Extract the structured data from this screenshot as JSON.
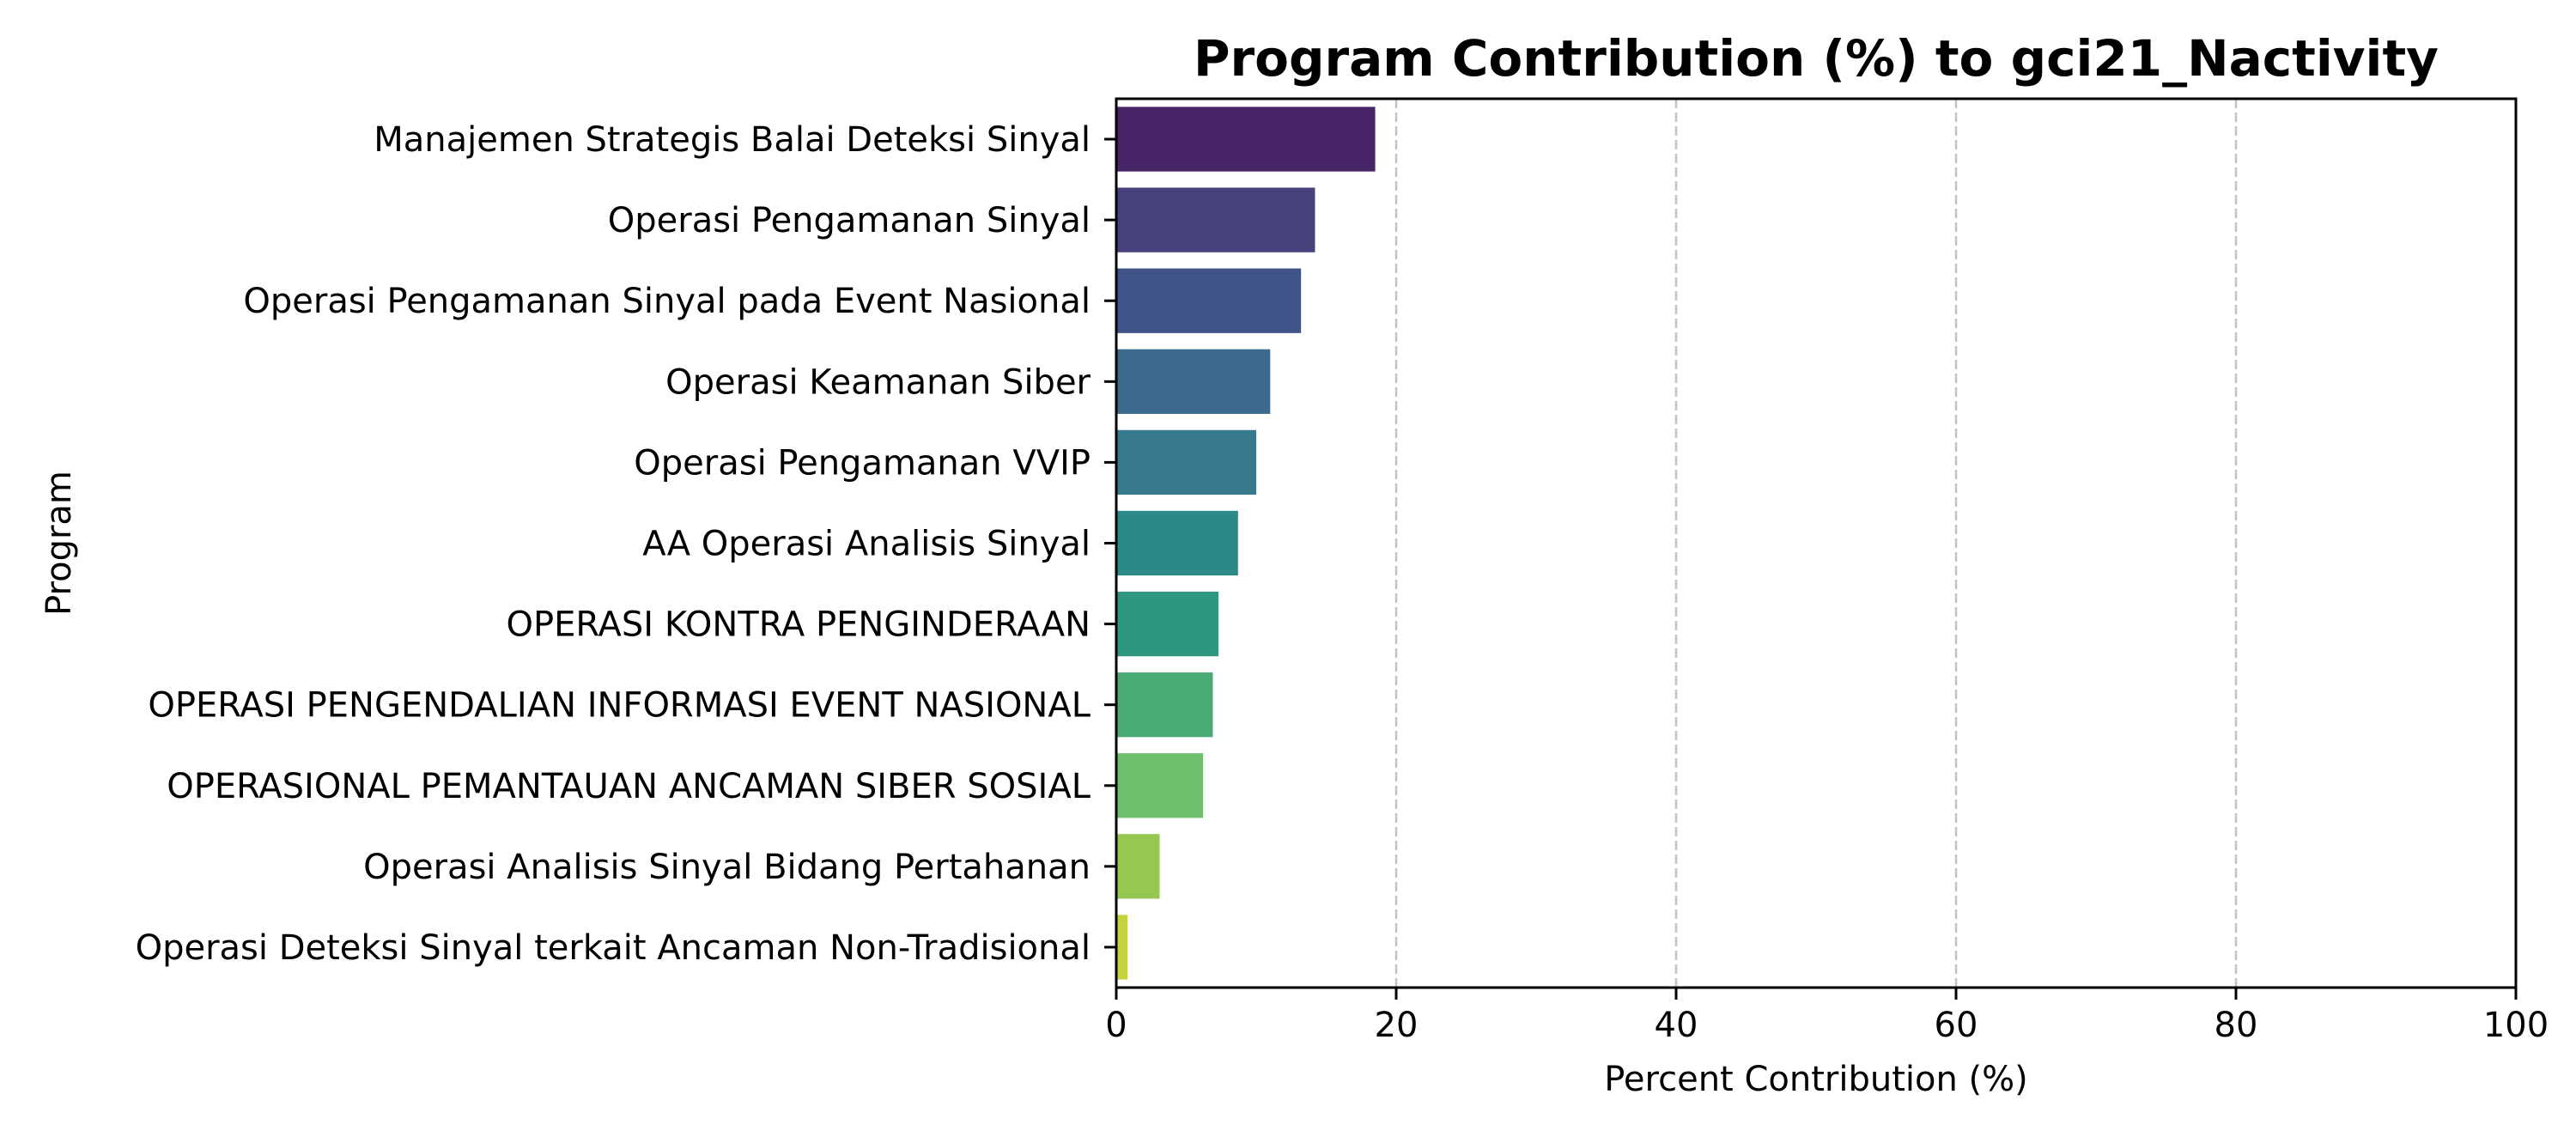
{
  "chart_data": {
    "type": "bar",
    "orientation": "horizontal",
    "title": "Program Contribution (%) to gci21_Nactivity",
    "xlabel": "Percent Contribution (%)",
    "ylabel": "Program",
    "xlim": [
      0,
      100
    ],
    "xticks": [
      0,
      20,
      40,
      60,
      80,
      100
    ],
    "grid": "x-axis dashed",
    "categories": [
      "Manajemen Strategis Balai Deteksi Sinyal",
      "Operasi Pengamanan Sinyal",
      "Operasi Pengamanan Sinyal pada Event Nasional",
      "Operasi Keamanan Siber",
      "Operasi Pengamanan VVIP",
      "AA Operasi Analisis Sinyal",
      "OPERASI KONTRA PENGINDERAAN",
      "OPERASI PENGENDALIAN INFORMASI EVENT NASIONAL",
      "OPERASIONAL PEMANTAUAN ANCAMAN SIBER SOSIAL",
      "Operasi Analisis Sinyal Bidang Pertahanan",
      "Operasi Deteksi Sinyal terkait Ancaman Non-Tradisional"
    ],
    "values": [
      18.5,
      14.2,
      13.2,
      11.0,
      10.0,
      8.7,
      7.3,
      6.9,
      6.2,
      3.1,
      0.8
    ],
    "colors": [
      "#482567",
      "#47427c",
      "#41548a",
      "#3b6a8d",
      "#37798e",
      "#2b8a88",
      "#2f9780",
      "#48ab76",
      "#6dbf6b",
      "#96c751",
      "#c6d33e"
    ]
  }
}
